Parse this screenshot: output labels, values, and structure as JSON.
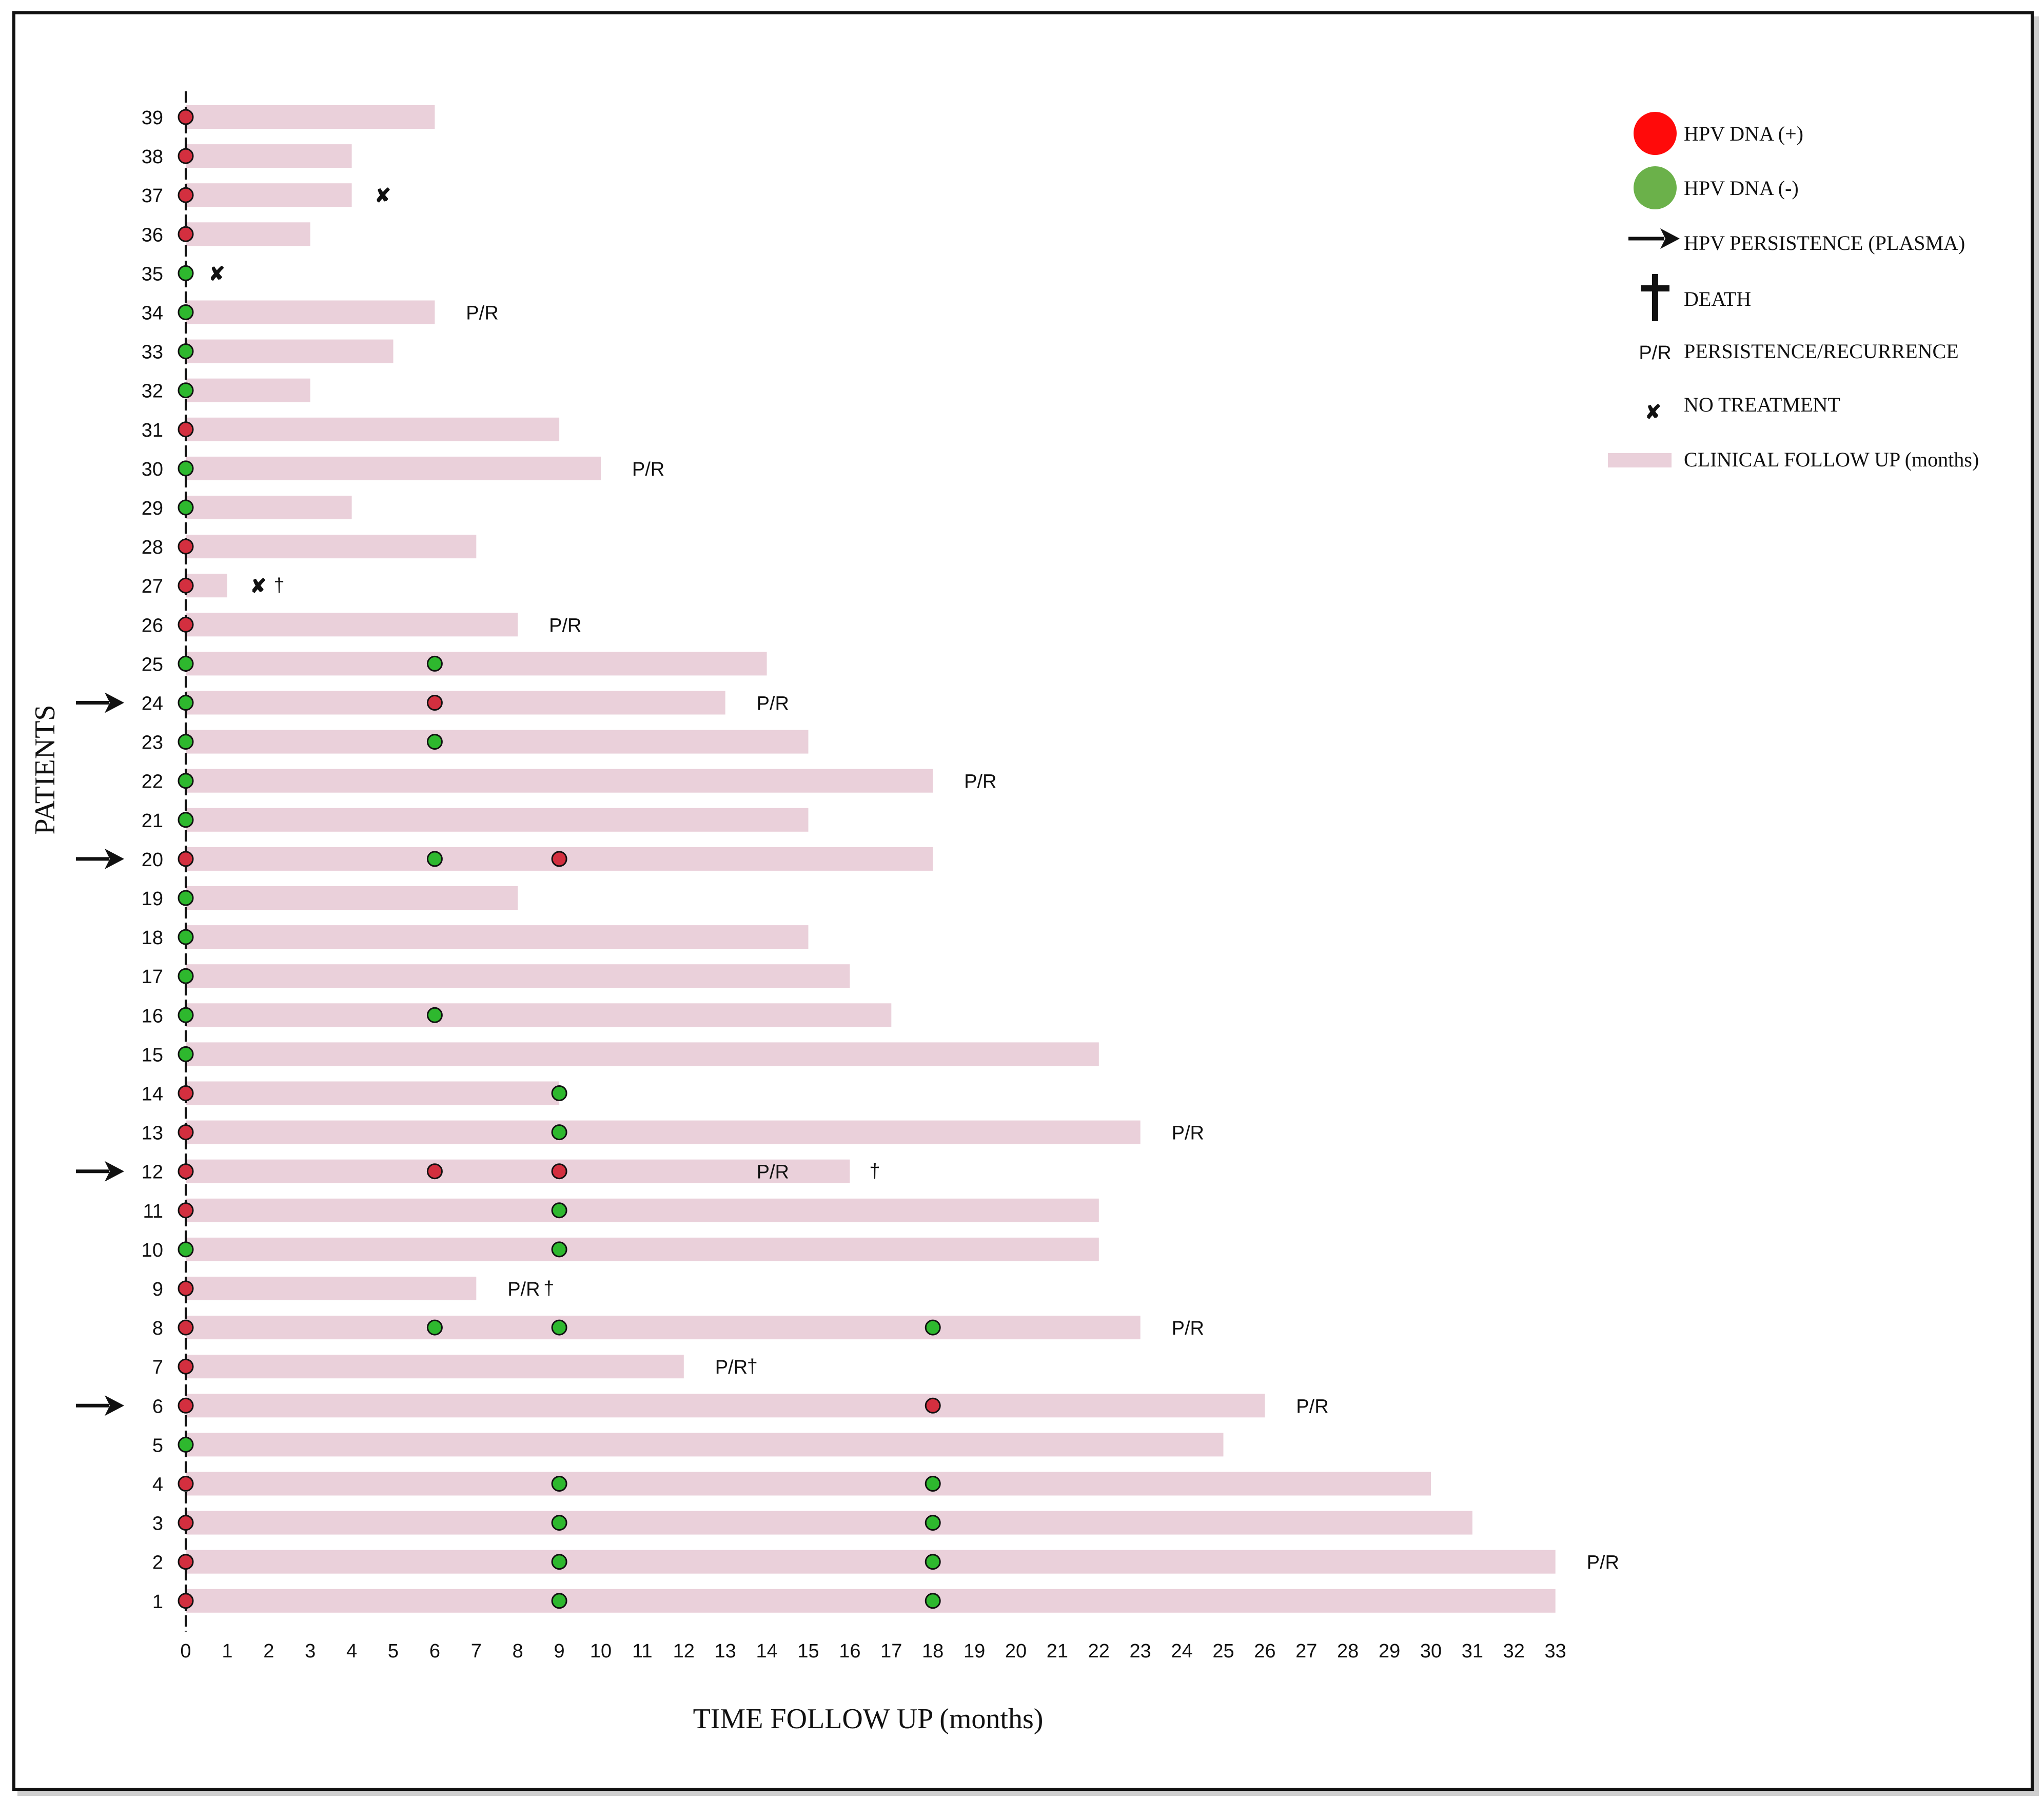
{
  "chart_data": {
    "type": "swimmer",
    "xlabel": "TIME FOLLOW UP (months)",
    "ylabel": "PATIENTS",
    "xlim": [
      0,
      33
    ],
    "xticks": [
      0,
      1,
      2,
      3,
      4,
      5,
      6,
      7,
      8,
      9,
      10,
      11,
      12,
      13,
      14,
      15,
      16,
      17,
      18,
      19,
      20,
      21,
      22,
      23,
      24,
      25,
      26,
      27,
      28,
      29,
      30,
      31,
      32,
      33
    ],
    "colors": {
      "positive": "#d32f3f",
      "negative": "#2eb82e",
      "bar": "#ead0da",
      "no_treatment": "#e8171b"
    },
    "annotation_text": {
      "pr": "P/R",
      "death": "†",
      "no_treatment": "✘"
    },
    "legend": [
      {
        "key": "pos",
        "label": "HPV DNA (+)"
      },
      {
        "key": "neg",
        "label": "HPV DNA (-)"
      },
      {
        "key": "arrow",
        "label": "HPV PERSISTENCE (PLASMA)"
      },
      {
        "key": "death",
        "label": "DEATH"
      },
      {
        "key": "pr",
        "label": "PERSISTENCE/RECURRENCE",
        "symbol": "P/R"
      },
      {
        "key": "x",
        "label": "NO TREATMENT"
      },
      {
        "key": "bar",
        "label": "CLINICAL FOLLOW UP (months)"
      }
    ],
    "patients": [
      {
        "id": 39,
        "follow_up": 6,
        "samples": [
          [
            0,
            "+"
          ]
        ]
      },
      {
        "id": 38,
        "follow_up": 4,
        "samples": [
          [
            0,
            "+"
          ]
        ]
      },
      {
        "id": 37,
        "follow_up": 4,
        "samples": [
          [
            0,
            "+"
          ]
        ],
        "no_treatment_at": 4.75
      },
      {
        "id": 36,
        "follow_up": 3,
        "samples": [
          [
            0,
            "+"
          ]
        ]
      },
      {
        "id": 35,
        "follow_up": 0,
        "samples": [
          [
            0,
            "-"
          ]
        ],
        "no_treatment_at": 0.75
      },
      {
        "id": 34,
        "follow_up": 6,
        "samples": [
          [
            0,
            "-"
          ]
        ],
        "pr_at": 7,
        "pr_dark": true
      },
      {
        "id": 33,
        "follow_up": 5,
        "samples": [
          [
            0,
            "-"
          ]
        ]
      },
      {
        "id": 32,
        "follow_up": 3,
        "samples": [
          [
            0,
            "-"
          ]
        ]
      },
      {
        "id": 31,
        "follow_up": 9,
        "samples": [
          [
            0,
            "+"
          ]
        ]
      },
      {
        "id": 30,
        "follow_up": 10,
        "samples": [
          [
            0,
            "-"
          ]
        ],
        "pr_at": 11,
        "pr_dark": true
      },
      {
        "id": 29,
        "follow_up": 4,
        "samples": [
          [
            0,
            "-"
          ]
        ]
      },
      {
        "id": 28,
        "follow_up": 7,
        "samples": [
          [
            0,
            "+"
          ]
        ]
      },
      {
        "id": 27,
        "follow_up": 1,
        "samples": [
          [
            0,
            "+"
          ]
        ],
        "no_treatment_at": 1.75,
        "death_at": 2.25
      },
      {
        "id": 26,
        "follow_up": 8,
        "samples": [
          [
            0,
            "+"
          ]
        ],
        "pr_at": 9,
        "pr_dark": true
      },
      {
        "id": 25,
        "follow_up": 14,
        "samples": [
          [
            0,
            "-"
          ],
          [
            6,
            "-"
          ]
        ]
      },
      {
        "id": 24,
        "follow_up": 13,
        "samples": [
          [
            0,
            "-"
          ],
          [
            6,
            "+"
          ]
        ],
        "arrow": true,
        "pr_at": 14,
        "pr_dark": true
      },
      {
        "id": 23,
        "follow_up": 15,
        "samples": [
          [
            0,
            "-"
          ],
          [
            6,
            "-"
          ]
        ]
      },
      {
        "id": 22,
        "follow_up": 18,
        "samples": [
          [
            0,
            "-"
          ]
        ],
        "pr_at": 19,
        "pr_dark": true
      },
      {
        "id": 21,
        "follow_up": 15,
        "samples": [
          [
            0,
            "-"
          ]
        ]
      },
      {
        "id": 20,
        "follow_up": 18,
        "samples": [
          [
            0,
            "+"
          ],
          [
            6,
            "-"
          ],
          [
            9,
            "+"
          ]
        ],
        "arrow": true
      },
      {
        "id": 19,
        "follow_up": 8,
        "samples": [
          [
            0,
            "-"
          ]
        ]
      },
      {
        "id": 18,
        "follow_up": 15,
        "samples": [
          [
            0,
            "-"
          ]
        ]
      },
      {
        "id": 17,
        "follow_up": 16,
        "samples": [
          [
            0,
            "-"
          ]
        ]
      },
      {
        "id": 16,
        "follow_up": 17,
        "samples": [
          [
            0,
            "-"
          ],
          [
            6,
            "-"
          ]
        ]
      },
      {
        "id": 15,
        "follow_up": 22,
        "samples": [
          [
            0,
            "-"
          ]
        ]
      },
      {
        "id": 14,
        "follow_up": 9,
        "samples": [
          [
            0,
            "+"
          ],
          [
            9,
            "-"
          ]
        ]
      },
      {
        "id": 13,
        "follow_up": 23,
        "samples": [
          [
            0,
            "+"
          ],
          [
            9,
            "-"
          ]
        ],
        "pr_at": 24,
        "pr_dark": true
      },
      {
        "id": 12,
        "follow_up": 16,
        "samples": [
          [
            0,
            "+"
          ],
          [
            6,
            "+"
          ],
          [
            9,
            "+"
          ]
        ],
        "arrow": true,
        "pr_at": 14,
        "pr_dark": false,
        "death_at": 16.6
      },
      {
        "id": 11,
        "follow_up": 22,
        "samples": [
          [
            0,
            "+"
          ],
          [
            9,
            "-"
          ]
        ]
      },
      {
        "id": 10,
        "follow_up": 22,
        "samples": [
          [
            0,
            "-"
          ],
          [
            9,
            "-"
          ]
        ]
      },
      {
        "id": 9,
        "follow_up": 7,
        "samples": [
          [
            0,
            "+"
          ]
        ],
        "pr_at": 8,
        "pr_dark": true,
        "death_at": 8.75
      },
      {
        "id": 8,
        "follow_up": 23,
        "samples": [
          [
            0,
            "+"
          ],
          [
            6,
            "-"
          ],
          [
            9,
            "-"
          ],
          [
            18,
            "-"
          ]
        ],
        "pr_at": 24,
        "pr_dark": true
      },
      {
        "id": 7,
        "follow_up": 12,
        "samples": [
          [
            0,
            "+"
          ]
        ],
        "pr_at": 13,
        "pr_dark": true,
        "death_at": 13.65
      },
      {
        "id": 6,
        "follow_up": 26,
        "samples": [
          [
            0,
            "+"
          ],
          [
            18,
            "+"
          ]
        ],
        "arrow": true,
        "pr_at": 27,
        "pr_dark": true
      },
      {
        "id": 5,
        "follow_up": 25,
        "samples": [
          [
            0,
            "-"
          ]
        ]
      },
      {
        "id": 4,
        "follow_up": 30,
        "samples": [
          [
            0,
            "+"
          ],
          [
            9,
            "-"
          ],
          [
            18,
            "-"
          ]
        ]
      },
      {
        "id": 3,
        "follow_up": 31,
        "samples": [
          [
            0,
            "+"
          ],
          [
            9,
            "-"
          ],
          [
            18,
            "-"
          ]
        ]
      },
      {
        "id": 2,
        "follow_up": 33,
        "samples": [
          [
            0,
            "+"
          ],
          [
            9,
            "-"
          ],
          [
            18,
            "-"
          ]
        ],
        "pr_at": 34,
        "pr_dark": true
      },
      {
        "id": 1,
        "follow_up": 33,
        "samples": [
          [
            0,
            "+"
          ],
          [
            9,
            "-"
          ],
          [
            18,
            "-"
          ]
        ]
      }
    ]
  }
}
